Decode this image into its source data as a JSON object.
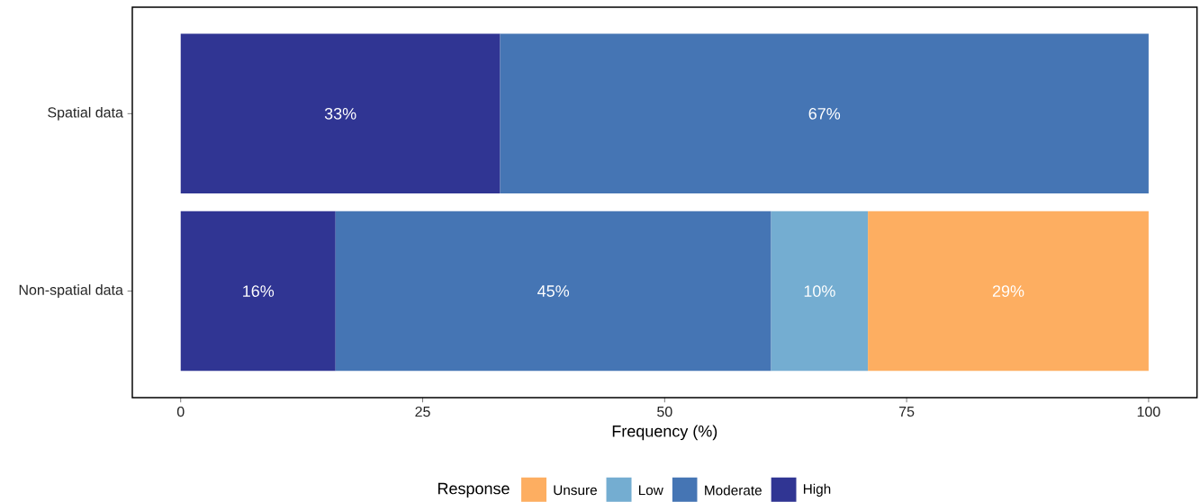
{
  "chart_data": {
    "type": "bar",
    "orientation": "horizontal",
    "stacked": true,
    "categories": [
      "Spatial data",
      "Non-spatial data"
    ],
    "series": [
      {
        "name": "High",
        "color": "#303593",
        "values": [
          33,
          16
        ],
        "value_labels": [
          "33%",
          "16%"
        ]
      },
      {
        "name": "Moderate",
        "color": "#4575b4",
        "values": [
          67,
          45
        ],
        "value_labels": [
          "67%",
          "45%"
        ]
      },
      {
        "name": "Low",
        "color": "#74add1",
        "values": [
          null,
          10
        ],
        "value_labels": [
          null,
          "10%"
        ]
      },
      {
        "name": "Unsure",
        "color": "#fdae61",
        "values": [
          null,
          29
        ],
        "value_labels": [
          null,
          "29%"
        ]
      }
    ],
    "xlim": [
      -5,
      105
    ],
    "xticks": [
      0,
      25,
      50,
      75,
      100
    ],
    "xlabel": "Frequency (%)",
    "legend_title": "Response",
    "legend": "bottom",
    "grid": false
  }
}
